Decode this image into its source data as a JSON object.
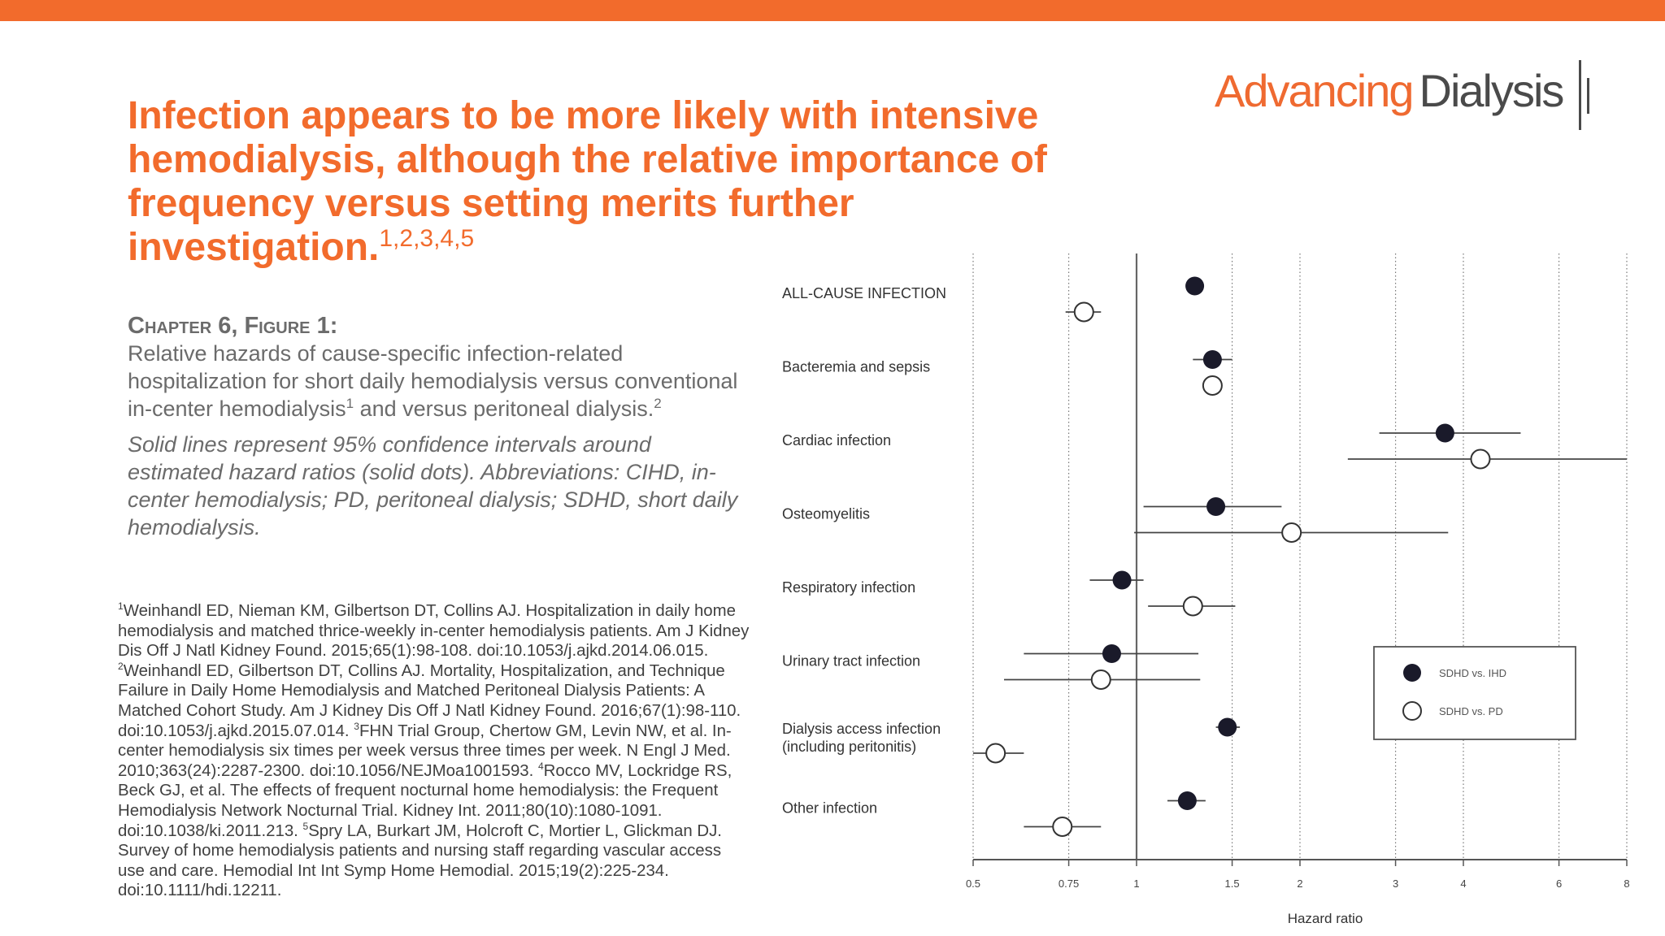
{
  "logo": {
    "word1": "Advancing",
    "word2": "Dialysis"
  },
  "title": {
    "text": "Infection appears to be more likely with intensive hemodialysis, although the relative importance of frequency versus setting merits further investigation.",
    "refs": "1,2,3,4,5"
  },
  "caption": {
    "heading": "Chapter 6, Figure 1:",
    "body_a": "Relative hazards of cause-specific infection-related hospitalization for short daily hemodialysis versus conventional in-center hemodialysis",
    "ref_a": "1",
    "body_b": " and versus peritoneal dialysis.",
    "ref_b": "2",
    "note": "Solid lines represent 95% confidence intervals around estimated hazard ratios (solid dots). Abbreviations: CIHD, in-center hemodialysis; PD, peritoneal dialysis; SDHD, short daily hemodialysis."
  },
  "references": [
    {
      "num": "1",
      "text": "Weinhandl ED, Nieman KM, Gilbertson DT, Collins AJ. Hospitalization in daily home hemodialysis and matched thrice-weekly in-center hemodialysis patients. Am J Kidney Dis Off J Natl Kidney Found. 2015;65(1):98-108. doi:10.1053/j.ajkd.2014.06.015. "
    },
    {
      "num": "2",
      "text": "Weinhandl ED, Gilbertson DT, Collins AJ. Mortality, Hospitalization, and Technique Failure in Daily Home Hemodialysis and Matched Peritoneal Dialysis Patients: A Matched Cohort Study. Am J Kidney Dis Off J Natl Kidney Found. 2016;67(1):98-110. doi:10.1053/j.ajkd.2015.07.014. "
    },
    {
      "num": "3",
      "text": "FHN Trial Group, Chertow GM, Levin NW, et al. In-center hemodialysis six times per week versus three times per week. N Engl J Med. 2010;363(24):2287-2300. doi:10.1056/NEJMoa1001593. "
    },
    {
      "num": "4",
      "text": "Rocco MV, Lockridge RS, Beck GJ, et al. The effects of frequent nocturnal home hemodialysis: the Frequent Hemodialysis Network Nocturnal Trial. Kidney Int. 2011;80(10):1080-1091. doi:10.1038/ki.2011.213. "
    },
    {
      "num": "5",
      "text": "Spry LA, Burkart JM, Holcroft C, Mortier L, Glickman DJ. Survey of home hemodialysis patients and nursing staff regarding vascular access use and care. Hemodial Int Int Symp Home Hemodial. 2015;19(2):225-234. doi:10.1111/hdi.12211."
    }
  ],
  "chart_data": {
    "type": "scatter",
    "subtype": "forest-plot",
    "xlabel": "Hazard ratio",
    "x_scale": "log",
    "xlim": [
      0.5,
      8
    ],
    "x_ticks": [
      0.5,
      0.75,
      1,
      1.5,
      2,
      3,
      4,
      6,
      8
    ],
    "x_tick_labels": [
      "0.5",
      "0.75",
      "1",
      "1.5",
      "2",
      "3",
      "4",
      "6",
      "8"
    ],
    "reference_line": 1,
    "grid": "dotted vertical",
    "legend_position": "right-middle",
    "categories": [
      "ALL-CAUSE INFECTION",
      "Bacteremia and sepsis",
      "Cardiac infection",
      "Osteomyelitis",
      "Respiratory infection",
      "Urinary tract infection",
      "Dialysis access infection (including peritonitis)",
      "Other infection"
    ],
    "series": [
      {
        "name": "SDHD vs. IHD",
        "marker": "filled",
        "color": "#1a1a2a",
        "values": [
          1.28,
          1.38,
          3.7,
          1.4,
          0.94,
          0.9,
          1.47,
          1.24
        ],
        "ci_low": [
          null,
          1.27,
          2.8,
          1.03,
          0.82,
          0.62,
          1.4,
          1.14
        ],
        "ci_high": [
          null,
          1.5,
          5.1,
          1.85,
          1.03,
          1.3,
          1.55,
          1.34
        ]
      },
      {
        "name": "SDHD vs. PD",
        "marker": "open",
        "color": "#1a1a2a",
        "values": [
          0.8,
          1.38,
          4.3,
          1.93,
          1.27,
          0.86,
          0.55,
          0.73
        ],
        "ci_low": [
          0.74,
          null,
          2.45,
          0.99,
          1.05,
          0.57,
          0.5,
          0.62
        ],
        "ci_high": [
          0.86,
          null,
          8,
          3.75,
          1.52,
          1.31,
          0.62,
          0.86
        ]
      }
    ]
  }
}
